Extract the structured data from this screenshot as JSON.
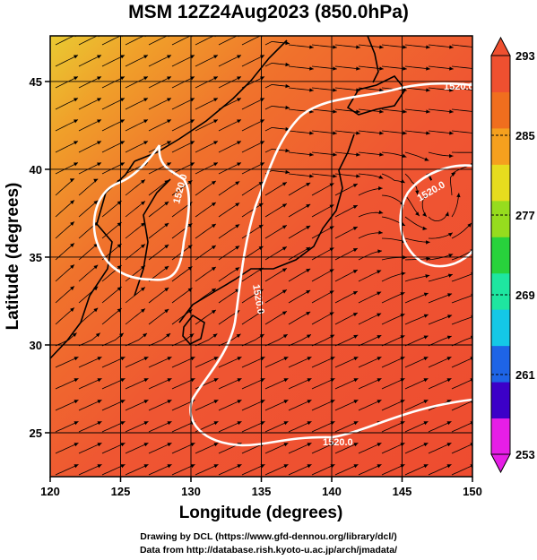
{
  "title": "MSM 12Z24Aug2023 (850.0hPa)",
  "xaxis": {
    "label": "Longitude (degrees)",
    "range": [
      120,
      150
    ],
    "ticks": [
      "120",
      "125",
      "130",
      "135",
      "140",
      "145",
      "150"
    ]
  },
  "yaxis": {
    "label": "Latitude  (degrees)",
    "range": [
      22.5,
      47.6
    ],
    "ticks": [
      "25",
      "30",
      "35",
      "40",
      "45"
    ]
  },
  "colorbar": {
    "ticks": [
      "293",
      "285",
      "277",
      "269",
      "261",
      "253"
    ],
    "range": [
      253,
      293
    ],
    "colors": [
      "#e61ee6",
      "#3c00c8",
      "#1e64e6",
      "#14c8e6",
      "#1ee6a0",
      "#28d23c",
      "#96dc1e",
      "#e6dc1e",
      "#f5a01e",
      "#f06e1e",
      "#ef5030"
    ]
  },
  "contours": {
    "labels": [
      "1520.0",
      "1520.0",
      "1520.0",
      "1520.0",
      "1520.0"
    ]
  },
  "credits": {
    "line1": "Drawing by DCL (https://www.gfd-dennou.org/library/dcl/)",
    "line2": "Data from http://database.rish.kyoto-u.ac.jp/arch/jmadata/"
  },
  "chart_data": {
    "type": "heatmap",
    "title": "MSM 12Z24Aug2023 (850.0hPa)",
    "xlabel": "Longitude (degrees)",
    "ylabel": "Latitude  (degrees)",
    "xlim": [
      120,
      150
    ],
    "ylim": [
      22.5,
      47.6
    ],
    "colorbar_range": [
      253,
      293
    ],
    "colorbar_ticks": [
      293,
      285,
      277,
      269,
      261,
      253
    ],
    "contour_value": 1520.0,
    "grid": true
  }
}
